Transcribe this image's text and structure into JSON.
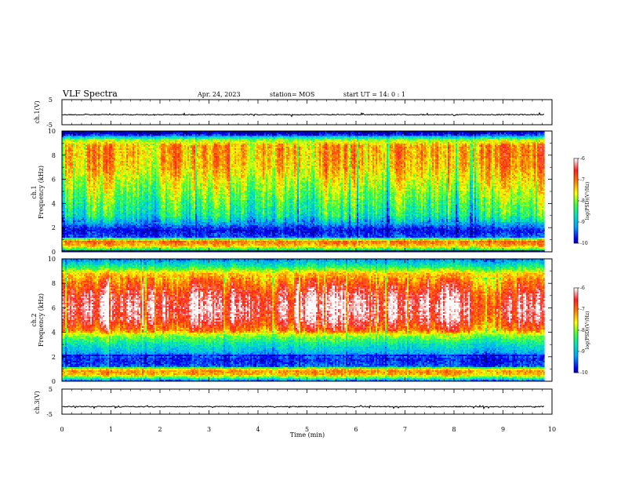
{
  "header": {
    "title": "VLF Spectra",
    "date": "Apr. 24, 2023",
    "station": "station= MOS",
    "start": "start  UT =   14: 0  : 1"
  },
  "labels": {
    "ch1_waveform": "ch.1(V)",
    "ch1_freq": "ch.1\nFrequency (kHz)",
    "ch2_freq": "ch.2\nFrequency (kHz)",
    "ch3_waveform": "ch.3(V)",
    "xlabel": "Time  (min)",
    "colorbar_label": "log(PSD)(V²/Hz)"
  },
  "colors": {
    "colormap": [
      "#000060",
      "#0000ff",
      "#00a0ff",
      "#00e0c0",
      "#40ff40",
      "#ffff00",
      "#ff8000",
      "#ff2020",
      "#ffffff"
    ]
  },
  "chart_data": [
    {
      "type": "line",
      "name": "ch1-waveform",
      "ylabel": "ch.1(V)",
      "ylim": [
        -5,
        5
      ],
      "yticks": [
        5,
        -5
      ],
      "baseline": -1,
      "xlim": [
        0,
        10
      ]
    },
    {
      "type": "heatmap",
      "name": "ch1-spectrogram",
      "ylabel": "Frequency (kHz)",
      "xlabel": "Time  (min)",
      "xlim": [
        0,
        10
      ],
      "ylim": [
        0,
        10
      ],
      "yticks": [
        0,
        2,
        4,
        6,
        8,
        10
      ],
      "data_extent_min": 9.85,
      "colorbar": {
        "ticks": [
          -6,
          -7,
          -8,
          -9,
          -10
        ],
        "range": [
          -10,
          -6
        ],
        "label": "log(PSD)(V²/Hz)"
      },
      "freq_profile_logpsd": [
        {
          "f": 0.1,
          "v": -8.5
        },
        {
          "f": 0.5,
          "v": -7.0
        },
        {
          "f": 0.9,
          "v": -6.6
        },
        {
          "f": 1.3,
          "v": -9.2
        },
        {
          "f": 1.8,
          "v": -9.5
        },
        {
          "f": 2.4,
          "v": -8.8
        },
        {
          "f": 3.0,
          "v": -8.2
        },
        {
          "f": 4.0,
          "v": -7.9
        },
        {
          "f": 5.0,
          "v": -7.6
        },
        {
          "f": 6.0,
          "v": -7.3
        },
        {
          "f": 7.0,
          "v": -7.0
        },
        {
          "f": 8.0,
          "v": -6.9
        },
        {
          "f": 8.8,
          "v": -6.9
        },
        {
          "f": 9.3,
          "v": -7.6
        },
        {
          "f": 9.7,
          "v": -9.4
        },
        {
          "f": 10.0,
          "v": -9.8
        }
      ]
    },
    {
      "type": "heatmap",
      "name": "ch2-spectrogram",
      "ylabel": "Frequency (kHz)",
      "xlim": [
        0,
        10
      ],
      "ylim": [
        0,
        10
      ],
      "yticks": [
        0,
        2,
        4,
        6,
        8,
        10
      ],
      "data_extent_min": 9.85,
      "colorbar": {
        "ticks": [
          -6,
          -7,
          -8,
          -9,
          -10
        ],
        "range": [
          -10,
          -6
        ],
        "label": "log(PSD)(V²/Hz)"
      },
      "freq_profile_logpsd": [
        {
          "f": 0.1,
          "v": -8.5
        },
        {
          "f": 0.5,
          "v": -7.0
        },
        {
          "f": 0.9,
          "v": -6.8
        },
        {
          "f": 1.3,
          "v": -9.2
        },
        {
          "f": 1.8,
          "v": -9.4
        },
        {
          "f": 2.4,
          "v": -8.7
        },
        {
          "f": 3.0,
          "v": -8.3
        },
        {
          "f": 3.7,
          "v": -7.6
        },
        {
          "f": 4.2,
          "v": -6.6
        },
        {
          "f": 5.0,
          "v": -6.1
        },
        {
          "f": 6.0,
          "v": -5.9
        },
        {
          "f": 7.0,
          "v": -6.1
        },
        {
          "f": 8.0,
          "v": -6.6
        },
        {
          "f": 8.8,
          "v": -7.1
        },
        {
          "f": 9.4,
          "v": -8.2
        },
        {
          "f": 10.0,
          "v": -9.0
        }
      ]
    },
    {
      "type": "line",
      "name": "ch3-waveform",
      "ylabel": "ch.3(V)",
      "ylim": [
        -5,
        5
      ],
      "yticks": [
        5,
        -5
      ],
      "baseline": -2,
      "xlim": [
        0,
        10
      ],
      "xticks": [
        0,
        1,
        2,
        3,
        4,
        5,
        6,
        7,
        8,
        9,
        10
      ],
      "xlabel": "Time  (min)"
    }
  ]
}
